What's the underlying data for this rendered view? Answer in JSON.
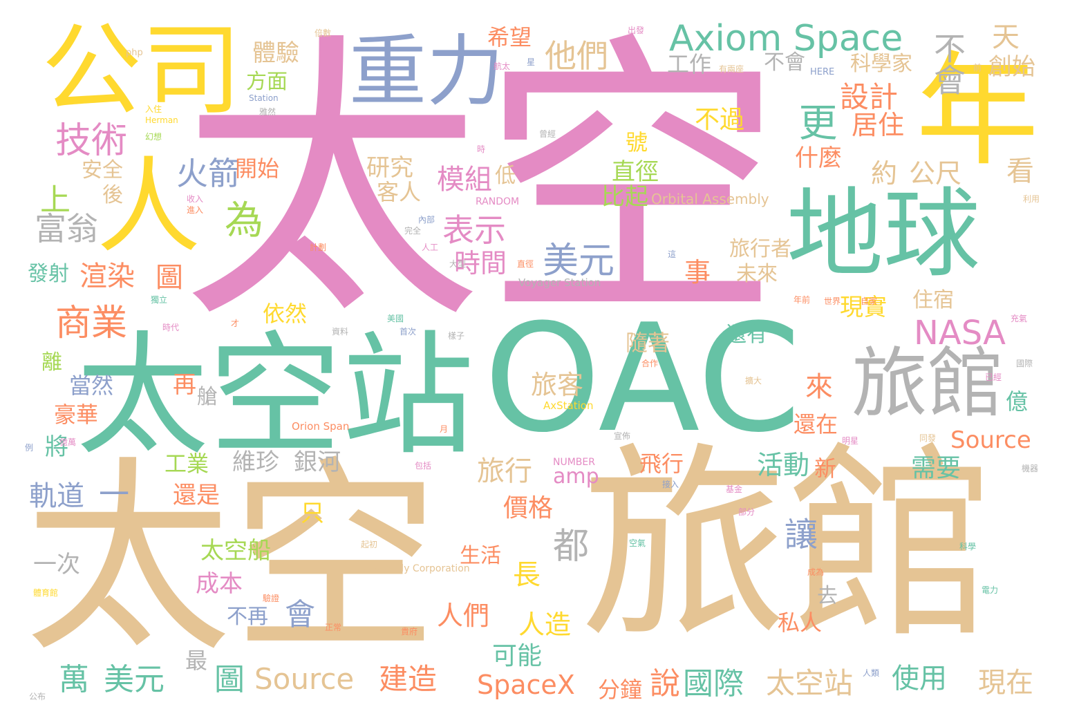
{
  "palette": {
    "pink": "#e48bc4",
    "teal": "#66c2a5",
    "tan": "#e5c494",
    "yellow": "#ffd92f",
    "orange": "#fc8d62",
    "blue": "#8da0cb",
    "green": "#a6d854",
    "gray": "#b3b3b3"
  },
  "words": [
    "太空",
    "OAC",
    "太空站",
    "旅館",
    "公司",
    "重力",
    "年",
    "地球",
    "人",
    "旅館",
    "Axiom Space",
    "他們",
    "技術",
    "火箭",
    "表示",
    "美元",
    "商業",
    "NASA",
    "設計",
    "體驗",
    "更",
    "居住",
    "富翁",
    "為",
    "希望",
    "方面",
    "工作",
    "科學家",
    "不過",
    "開始",
    "研究",
    "模組",
    "時間",
    "不會",
    "天",
    "創始",
    "看",
    "公尺",
    "約",
    "什麼",
    "直徑",
    "號",
    "低",
    "比起",
    "客人",
    "安全",
    "後",
    "上",
    "渲染",
    "圖",
    "發射",
    "Orbital Assembly",
    "旅行者",
    "未來",
    "事",
    "現實",
    "住宿",
    "依然",
    "Voyager Station",
    "隨著",
    "還有",
    "旅客",
    "離",
    "當然",
    "豪華",
    "再",
    "艙",
    "來",
    "億",
    "Source",
    "將",
    "還在",
    "工業",
    "維珍",
    "銀河",
    "旅行",
    "飛行",
    "活動",
    "新",
    "需要",
    "軌道",
    "一",
    "amp",
    "還是",
    "只",
    "價格",
    "都",
    "讓",
    "長",
    "太空船",
    "一次",
    "生活",
    "成本",
    "去",
    "私人",
    "人們",
    "會",
    "人造",
    "不再",
    "可能",
    "萬",
    "美元",
    "圖",
    "Source",
    "建造",
    "SpaceX",
    "分鐘",
    "說",
    "國際",
    "太空站",
    "使用",
    "現在",
    "最",
    "AxStation",
    "Orion Span",
    "NUMBER",
    "RANDOM",
    "HERE",
    "Assembly Corporation",
    "php",
    "入住",
    "Herman",
    "Station",
    "幻想",
    "出發",
    "航太",
    "星",
    "前",
    "倍數",
    "有兩座",
    "世界",
    "自家",
    "充氣",
    "國際",
    "億萬",
    "年前",
    "利用",
    "成為",
    "資料",
    "合作",
    "正常",
    "包括",
    "計劃",
    "人工",
    "內部",
    "完全",
    "部分",
    "同發",
    "明星",
    "基金",
    "電力",
    "科學",
    "公布",
    "體育館",
    "起初",
    "接入",
    "空氣",
    "貴府",
    "驗證",
    "首次",
    "樣子",
    "大型",
    "直徑",
    "擴大",
    "宣佈",
    "美國",
    "時",
    "雅然",
    "才",
    "獨立",
    "收入",
    "例",
    "時代",
    "進入",
    "機器",
    "已經",
    "月",
    "這",
    "曾經",
    "人類"
  ]
}
